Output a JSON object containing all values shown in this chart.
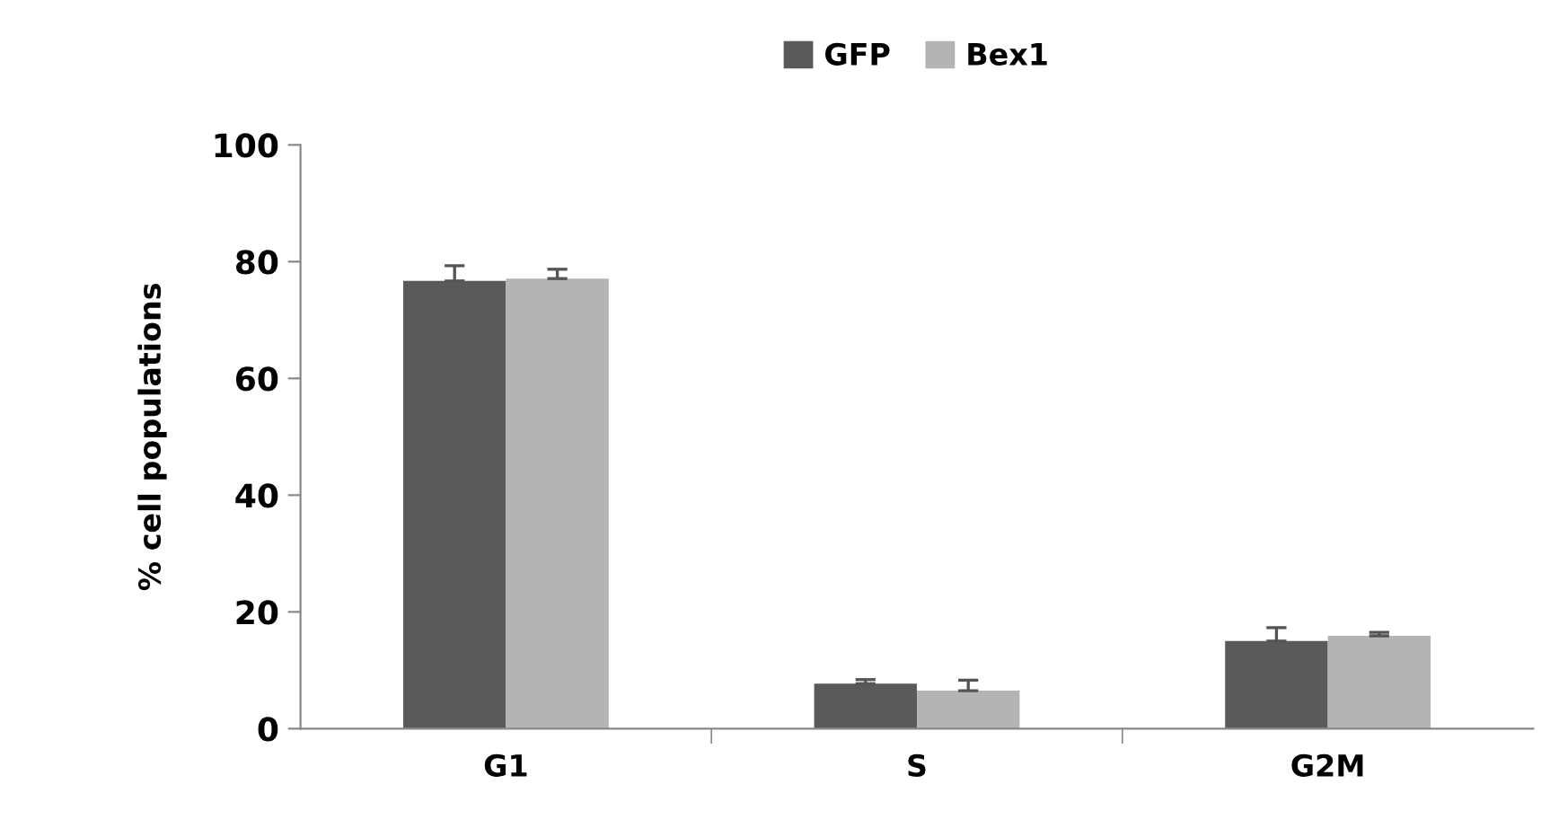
{
  "chart_data": {
    "type": "bar",
    "ylabel": "% cell populations",
    "categories": [
      "G1",
      "S",
      "G2M"
    ],
    "series": [
      {
        "name": "GFP",
        "color": "#5a5a5a",
        "values": [
          76.7,
          7.7,
          15.0
        ],
        "errors": [
          2.6,
          0.7,
          2.3
        ]
      },
      {
        "name": "Bex1",
        "color": "#b4b4b4",
        "values": [
          77.1,
          6.5,
          15.9
        ],
        "errors": [
          1.6,
          1.8,
          0.6
        ]
      }
    ],
    "ylim": [
      0,
      100
    ],
    "yticks": [
      0,
      20,
      40,
      60,
      80,
      100
    ],
    "grid": false,
    "legend": "top"
  }
}
